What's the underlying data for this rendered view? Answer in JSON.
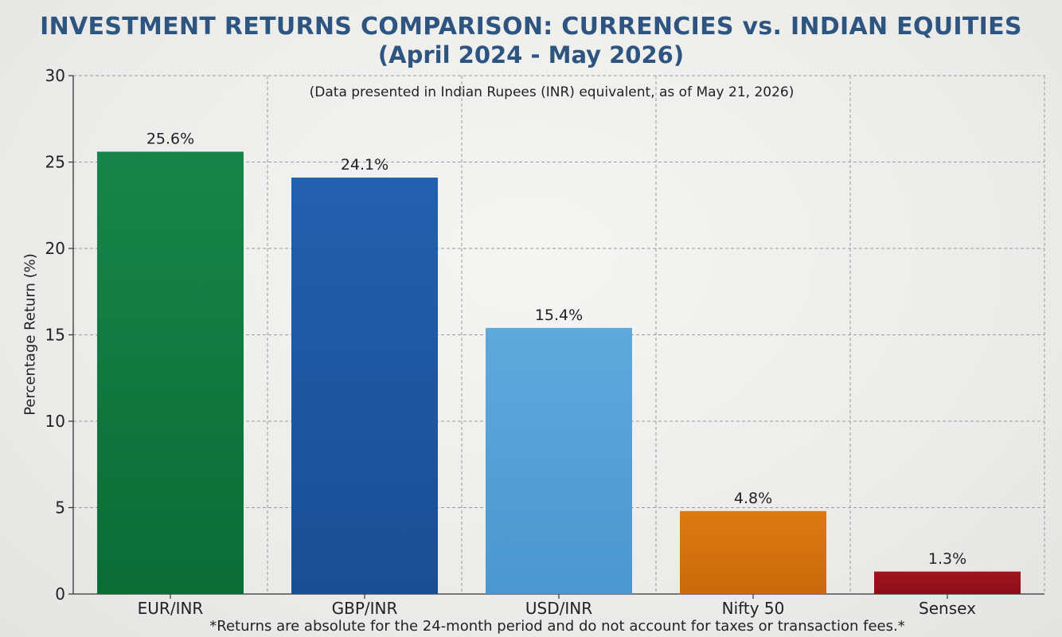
{
  "chart_data": {
    "type": "bar",
    "title_line1": "INVESTMENT RETURNS COMPARISON: CURRENCIES vs. INDIAN EQUITIES",
    "title_line2": "(April 2024 - May 2026)",
    "subtitle": "(Data presented in Indian Rupees (INR) equivalent, as of May 21, 2026)",
    "ylabel": "Percentage Return (%)",
    "xlabel": "",
    "ylim": [
      0,
      30
    ],
    "yticks": [
      0,
      5,
      10,
      15,
      20,
      25,
      30
    ],
    "grid": true,
    "categories": [
      "EUR/INR",
      "GBP/INR",
      "USD/INR",
      "Nifty 50",
      "Sensex"
    ],
    "values": [
      25.6,
      24.1,
      15.4,
      4.8,
      1.3
    ],
    "value_labels": [
      "25.6%",
      "24.1%",
      "15.4%",
      "4.8%",
      "1.3%"
    ],
    "colors": [
      "#17854a",
      "#2360ae",
      "#5ea8dc",
      "#dd7a10",
      "#a3141f"
    ],
    "colors_dark": [
      "#0b6c36",
      "#1a4e94",
      "#4b97d0",
      "#c9690a",
      "#8c0d18"
    ],
    "footnote": "*Returns are absolute for the 24-month period and do not account for taxes or transaction fees.*"
  }
}
